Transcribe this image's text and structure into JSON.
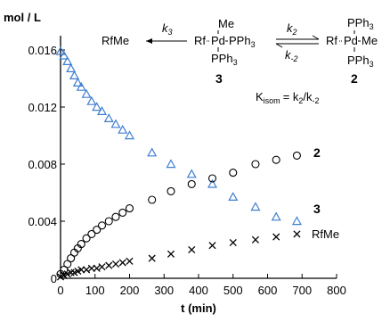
{
  "chart_data": {
    "type": "scatter",
    "title": "",
    "xlabel": "t (min)",
    "ylabel": "mol / L",
    "xlim": [
      0,
      800
    ],
    "ylim": [
      0,
      0.017
    ],
    "xticks": [
      0,
      100,
      200,
      300,
      400,
      500,
      600,
      700,
      800
    ],
    "yticks": [
      0,
      0.004,
      0.008,
      0.012,
      0.016
    ],
    "xtick_labels": [
      "0",
      "100",
      "200",
      "300",
      "400",
      "500",
      "600",
      "700",
      "800"
    ],
    "ytick_labels": [
      "0",
      "0.004",
      "0.008",
      "0.012",
      "0.016"
    ],
    "grid": false,
    "series": [
      {
        "name": "3",
        "marker": "triangle",
        "color": "#3f7fd0",
        "x": [
          0,
          10,
          20,
          30,
          40,
          50,
          60,
          75,
          90,
          105,
          120,
          140,
          160,
          180,
          200,
          265,
          320,
          380,
          440,
          500,
          565,
          625,
          685
        ],
        "y": [
          0.0159,
          0.0156,
          0.0152,
          0.0147,
          0.0142,
          0.0137,
          0.0134,
          0.0129,
          0.0124,
          0.012,
          0.0117,
          0.0112,
          0.0108,
          0.0104,
          0.01,
          0.0088,
          0.008,
          0.0073,
          0.0066,
          0.0057,
          0.005,
          0.0043,
          0.004
        ]
      },
      {
        "name": "2",
        "marker": "circle",
        "color": "#000000",
        "x": [
          0,
          10,
          20,
          30,
          40,
          50,
          60,
          75,
          90,
          105,
          120,
          140,
          160,
          180,
          200,
          265,
          320,
          380,
          440,
          500,
          565,
          625,
          685
        ],
        "y": [
          0.0003,
          0.0006,
          0.001,
          0.0014,
          0.0018,
          0.0021,
          0.0024,
          0.0028,
          0.0031,
          0.0034,
          0.0037,
          0.004,
          0.0043,
          0.0046,
          0.0049,
          0.0055,
          0.0061,
          0.0066,
          0.007,
          0.0074,
          0.008,
          0.0083,
          0.0086
        ]
      },
      {
        "name": "RfMe",
        "marker": "x",
        "color": "#000000",
        "x": [
          0,
          10,
          20,
          30,
          40,
          50,
          60,
          75,
          90,
          105,
          120,
          140,
          160,
          180,
          200,
          265,
          320,
          380,
          440,
          500,
          565,
          625,
          685
        ],
        "y": [
          0.0001,
          0.0002,
          0.0003,
          0.0004,
          0.0004,
          0.0005,
          0.0006,
          0.0006,
          0.0007,
          0.0007,
          0.0008,
          0.0009,
          0.001,
          0.0011,
          0.0012,
          0.0014,
          0.0017,
          0.002,
          0.0023,
          0.0025,
          0.0027,
          0.0029,
          0.0031
        ]
      }
    ],
    "series_labels": [
      "2",
      "3",
      "RfMe"
    ]
  },
  "scheme": {
    "product": "RfMe",
    "k3": "k",
    "k3_sub": "3",
    "k2": "k",
    "k2_sub": "2",
    "km2": "k",
    "km2_sub": "-2",
    "me": "Me",
    "rf": "Rf",
    "pd": "Pd",
    "pph3": "PPh",
    "pph3_sub": "3",
    "complex3_num": "3",
    "complex2_num": "2",
    "kisom_k": "K",
    "kisom_sub": "isom",
    "kisom_eq": "= k",
    "kisom_eq_sub": "2",
    "kisom_slash": "/k",
    "kisom_slash_sub": "-2"
  }
}
